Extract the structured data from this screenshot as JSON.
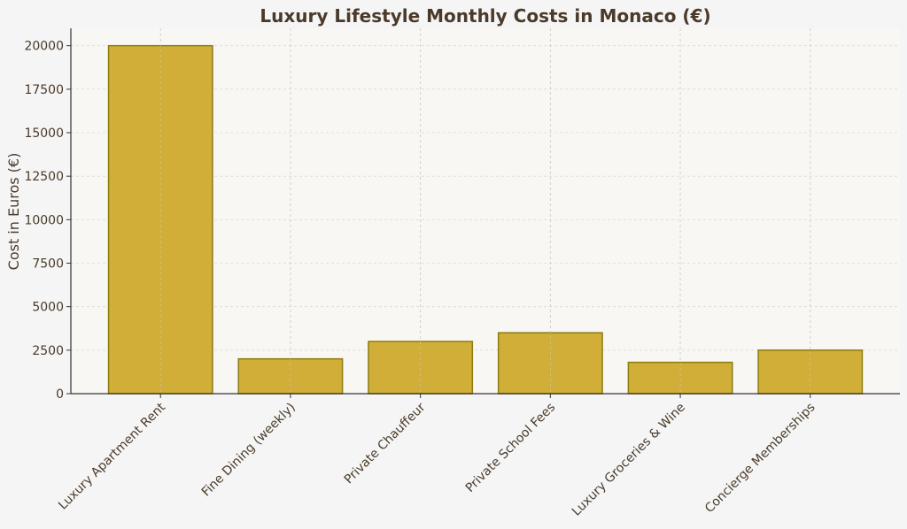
{
  "chart_data": {
    "type": "bar",
    "title": "Luxury Lifestyle Monthly Costs in Monaco (€)",
    "xlabel": "",
    "ylabel": "Cost in Euros (€)",
    "categories": [
      "Luxury Apartment Rent",
      "Fine Dining (weekly)",
      "Private Chauffeur",
      "Private School Fees",
      "Luxury Groceries & Wine",
      "Concierge Memberships"
    ],
    "values": [
      20000,
      2000,
      3000,
      3500,
      1800,
      2500
    ],
    "ylim": [
      0,
      21000
    ],
    "yticks": [
      0,
      2500,
      5000,
      7500,
      10000,
      12500,
      15000,
      17500,
      20000
    ],
    "grid": true,
    "colors": {
      "bar": "#d1ae38",
      "bar_edge": "#8b7d10",
      "plot_bg": "#f8f7f4",
      "page_bg": "#f5f5f5",
      "text": "#4a3a2a"
    }
  }
}
